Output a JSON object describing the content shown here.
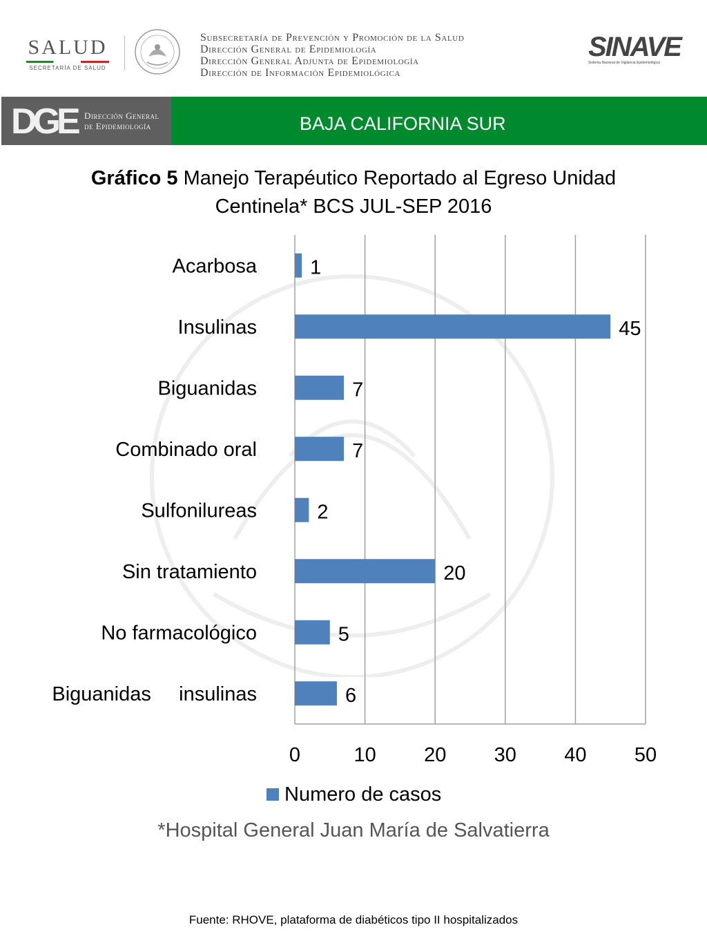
{
  "header": {
    "salud_logo": {
      "word": "SALUD",
      "subtitle": "SECRETARÍA DE SALUD"
    },
    "seal_icon": "mexican-coat-of-arms-seal",
    "subsecretaria_lines": [
      "Subsecretaría de Prevención y Promoción de la Salud",
      "Dirección General de Epidemiología",
      "Dirección General Adjunta de Epidemiología",
      "Dirección de Información Epidemiológica"
    ],
    "sinave_logo": {
      "word": "SINAVE",
      "subtitle": "Sistema Nacional de Vigilancia Epidemiológica"
    }
  },
  "banner": {
    "dge_mark": "DGE",
    "dge_text": [
      "Dirección General",
      "de Epidemiología"
    ],
    "state": "BAJA CALIFORNIA SUR",
    "left_color": "#5f5f5f",
    "right_color": "#008a2e"
  },
  "chart_title": {
    "bold": "Gráfico 5",
    "line1_rest": " Manejo Terapéutico Reportado al Egreso Unidad",
    "line2": "Centinela* BCS JUL-SEP 2016"
  },
  "chart_data": {
    "type": "bar",
    "orientation": "horizontal",
    "categories": [
      "Acarbosa",
      "Insulinas",
      "Biguanidas",
      "Combinado oral",
      "Sulfonilureas",
      "Sin tratamiento",
      "No farmacológico",
      "Biguanidas     insulinas"
    ],
    "series": [
      {
        "name": "Numero de casos",
        "values": [
          1,
          45,
          7,
          7,
          2,
          20,
          5,
          6
        ],
        "color": "#4f81bd"
      }
    ],
    "xlim": [
      0,
      50
    ],
    "xticks": [
      "0",
      "10",
      "20",
      "30",
      "40",
      "50"
    ],
    "grid": true,
    "legend": "bottom"
  },
  "legend_label": "Numero de casos",
  "footnote": "*Hospital General Juan María de Salvatierra",
  "source": "Fuente: RHOVE, plataforma de diabéticos tipo II hospitalizados"
}
